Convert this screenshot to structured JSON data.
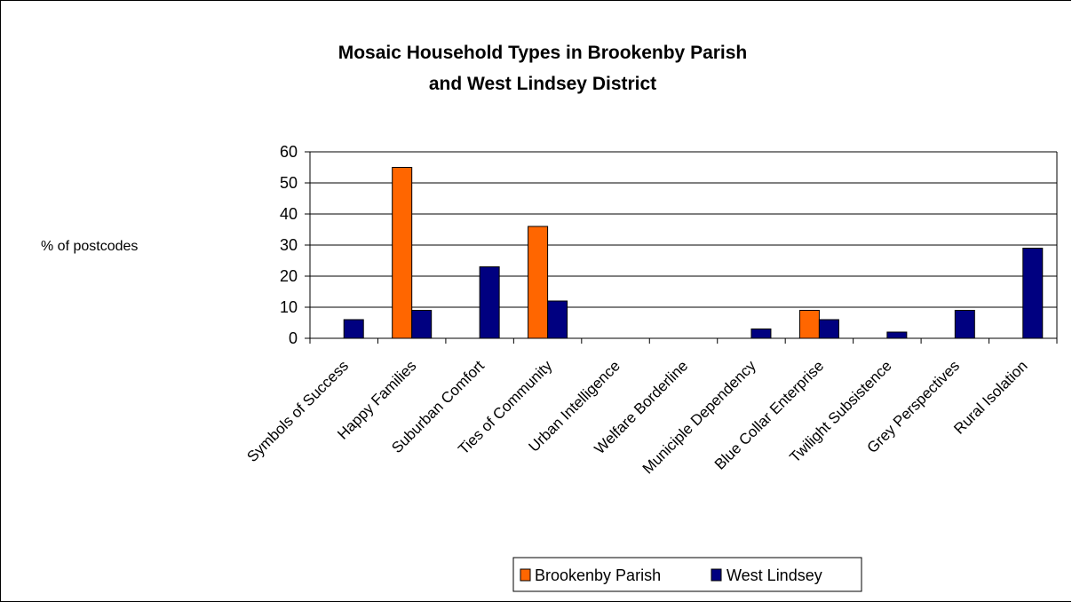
{
  "chart_data": {
    "type": "bar",
    "title_lines": [
      "Mosaic Household Types in Brookenby Parish",
      "and West Lindsey District"
    ],
    "xlabel": "",
    "ylabel": "% of postcodes",
    "ylim": [
      0,
      60
    ],
    "yticks": [
      "0",
      "10",
      "20",
      "30",
      "40",
      "50",
      "60"
    ],
    "grid": true,
    "legend_position": "bottom",
    "categories": [
      "Symbols of Success",
      "Happy Families",
      "Suburban Comfort",
      "Ties of Community",
      "Urban Intelligence",
      "Welfare Borderline",
      "Municiple Dependency",
      "Blue Collar Enterprise",
      "Twilight Subsistence",
      "Grey Perspectives",
      "Rural Isolation"
    ],
    "series": [
      {
        "name": "Brookenby Parish",
        "color": "#FF6600",
        "values": [
          0,
          55,
          0,
          36,
          0,
          0,
          0,
          9,
          0,
          0,
          0
        ]
      },
      {
        "name": "West Lindsey",
        "color": "#000080",
        "values": [
          6,
          9,
          23,
          12,
          0,
          0,
          3,
          6,
          2,
          9,
          29
        ]
      }
    ]
  }
}
